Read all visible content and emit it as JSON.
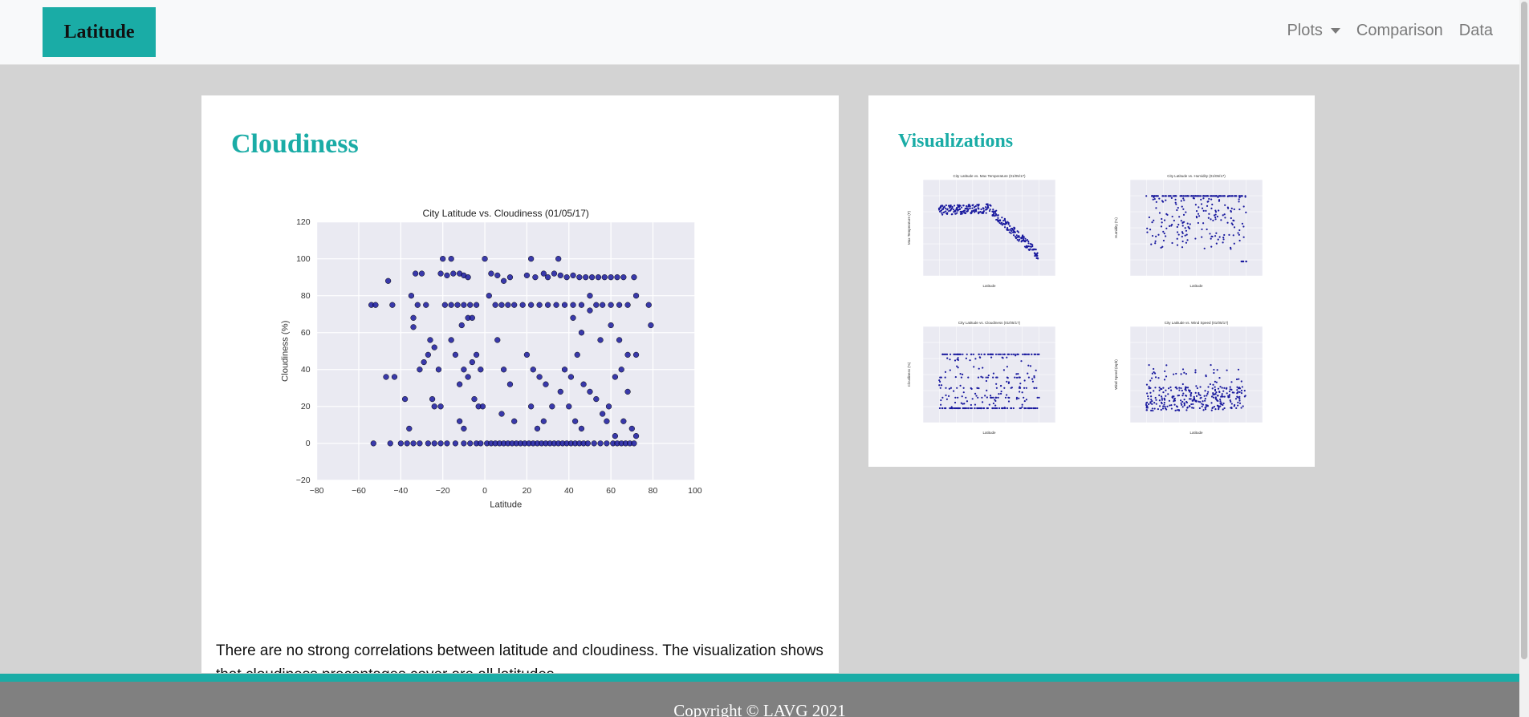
{
  "navbar": {
    "brand": "Latitude",
    "links": [
      {
        "label": "Plots",
        "dropdown": true
      },
      {
        "label": "Comparison",
        "dropdown": false
      },
      {
        "label": "Data",
        "dropdown": false
      }
    ]
  },
  "main": {
    "title": "Cloudiness",
    "description": "There are no strong correlations between latitude and cloudiness. The visualization shows that cloudiness precentages cover are all latitudes."
  },
  "sidebar": {
    "title": "Visualizations"
  },
  "footer": {
    "copyright": "Copyright © LAVG 2021"
  },
  "colors": {
    "accent": "#1aaca6",
    "point": "#1a1a9e",
    "plot_bg": "#eaeaf2",
    "footer": "#808080"
  },
  "chart_data": {
    "type": "scatter",
    "title": "City Latitude vs. Cloudiness (01/05/17)",
    "xlabel": "Latitude",
    "ylabel": "Cloudiness (%)",
    "xlim": [
      -80,
      100
    ],
    "ylim": [
      -20,
      120
    ],
    "xticks": [
      -80,
      -60,
      -40,
      -20,
      0,
      20,
      40,
      60,
      80,
      100
    ],
    "yticks": [
      -20,
      0,
      20,
      40,
      60,
      80,
      100,
      120
    ],
    "grid": true,
    "points": [
      [
        -54,
        75
      ],
      [
        -52,
        75
      ],
      [
        -46,
        88
      ],
      [
        -44,
        75
      ],
      [
        -47,
        36
      ],
      [
        -43,
        36
      ],
      [
        -38,
        24
      ],
      [
        -36,
        8
      ],
      [
        -35,
        80
      ],
      [
        -34,
        68
      ],
      [
        -34,
        63
      ],
      [
        -33,
        92
      ],
      [
        -30,
        92
      ],
      [
        -32,
        75
      ],
      [
        -28,
        75
      ],
      [
        -26,
        56
      ],
      [
        -24,
        52
      ],
      [
        -29,
        44
      ],
      [
        -31,
        40
      ],
      [
        -27,
        48
      ],
      [
        -22,
        40
      ],
      [
        -25,
        24
      ],
      [
        -24,
        20
      ],
      [
        -21,
        20
      ],
      [
        -20,
        100
      ],
      [
        -16,
        100
      ],
      [
        -21,
        92
      ],
      [
        -18,
        91
      ],
      [
        -15,
        92
      ],
      [
        -12,
        92
      ],
      [
        -10,
        91
      ],
      [
        -8,
        90
      ],
      [
        -19,
        75
      ],
      [
        -16,
        75
      ],
      [
        -13,
        75
      ],
      [
        -10,
        75
      ],
      [
        -7,
        75
      ],
      [
        -4,
        75
      ],
      [
        -11,
        64
      ],
      [
        -8,
        68
      ],
      [
        -6,
        68
      ],
      [
        -16,
        56
      ],
      [
        -14,
        48
      ],
      [
        -10,
        40
      ],
      [
        -12,
        32
      ],
      [
        -8,
        36
      ],
      [
        -6,
        44
      ],
      [
        -4,
        48
      ],
      [
        -2,
        40
      ],
      [
        -5,
        24
      ],
      [
        -3,
        20
      ],
      [
        -1,
        20
      ],
      [
        -12,
        12
      ],
      [
        -10,
        8
      ],
      [
        0,
        100
      ],
      [
        3,
        92
      ],
      [
        6,
        91
      ],
      [
        9,
        88
      ],
      [
        12,
        90
      ],
      [
        2,
        80
      ],
      [
        5,
        75
      ],
      [
        8,
        75
      ],
      [
        11,
        75
      ],
      [
        14,
        75
      ],
      [
        18,
        75
      ],
      [
        6,
        56
      ],
      [
        9,
        40
      ],
      [
        12,
        32
      ],
      [
        8,
        16
      ],
      [
        14,
        12
      ],
      [
        22,
        100
      ],
      [
        20,
        91
      ],
      [
        24,
        90
      ],
      [
        28,
        92
      ],
      [
        30,
        90
      ],
      [
        22,
        75
      ],
      [
        26,
        75
      ],
      [
        30,
        75
      ],
      [
        20,
        48
      ],
      [
        23,
        40
      ],
      [
        26,
        36
      ],
      [
        29,
        32
      ],
      [
        22,
        20
      ],
      [
        25,
        8
      ],
      [
        28,
        12
      ],
      [
        32,
        20
      ],
      [
        35,
        100
      ],
      [
        33,
        92
      ],
      [
        36,
        91
      ],
      [
        39,
        90
      ],
      [
        42,
        91
      ],
      [
        45,
        90
      ],
      [
        48,
        90
      ],
      [
        51,
        90
      ],
      [
        54,
        90
      ],
      [
        57,
        90
      ],
      [
        60,
        90
      ],
      [
        63,
        90
      ],
      [
        66,
        90
      ],
      [
        71,
        90
      ],
      [
        34,
        75
      ],
      [
        38,
        75
      ],
      [
        42,
        75
      ],
      [
        46,
        75
      ],
      [
        50,
        80
      ],
      [
        53,
        75
      ],
      [
        56,
        75
      ],
      [
        60,
        75
      ],
      [
        64,
        75
      ],
      [
        68,
        75
      ],
      [
        72,
        80
      ],
      [
        78,
        75
      ],
      [
        79,
        64
      ],
      [
        42,
        68
      ],
      [
        46,
        60
      ],
      [
        50,
        72
      ],
      [
        55,
        56
      ],
      [
        60,
        64
      ],
      [
        64,
        56
      ],
      [
        68,
        48
      ],
      [
        72,
        48
      ],
      [
        38,
        40
      ],
      [
        41,
        36
      ],
      [
        44,
        48
      ],
      [
        47,
        32
      ],
      [
        50,
        28
      ],
      [
        53,
        24
      ],
      [
        56,
        16
      ],
      [
        59,
        20
      ],
      [
        62,
        36
      ],
      [
        65,
        40
      ],
      [
        68,
        28
      ],
      [
        70,
        8
      ],
      [
        36,
        28
      ],
      [
        40,
        20
      ],
      [
        43,
        12
      ],
      [
        46,
        8
      ],
      [
        58,
        12
      ],
      [
        62,
        4
      ],
      [
        66,
        12
      ],
      [
        72,
        4
      ]
    ],
    "zero_row": [
      -53,
      -45,
      -40,
      -37,
      -34,
      -31,
      -27,
      -24,
      -21,
      -18,
      -14,
      -10,
      -7,
      -4,
      -2,
      1,
      3,
      5,
      7,
      9,
      11,
      13,
      15,
      17,
      19,
      21,
      23,
      25,
      27,
      29,
      31,
      33,
      35,
      37,
      39,
      41,
      43,
      45,
      47,
      49,
      52,
      55,
      58,
      61,
      63,
      65,
      67,
      69,
      71
    ],
    "hundred_row": [],
    "gap_note": ""
  },
  "thumbnails": [
    {
      "name": "temperature",
      "title": "City Latitude vs. Max Temperature (01/05/17)",
      "ylabel": "Max Temperature (F)",
      "xlabel": "Latitude"
    },
    {
      "name": "humidity",
      "title": "City Latitude vs. Humidity (01/05/17)",
      "ylabel": "Humidity (%)",
      "xlabel": "Latitude"
    },
    {
      "name": "cloudiness",
      "title": "City Latitude vs. Cloudiness (01/05/17)",
      "ylabel": "Cloudiness (%)",
      "xlabel": "Latitude"
    },
    {
      "name": "wind-speed",
      "title": "City Latitude vs. Wind Speed (01/05/17)",
      "ylabel": "Wind Speed (mph)",
      "xlabel": "Latitude"
    }
  ]
}
